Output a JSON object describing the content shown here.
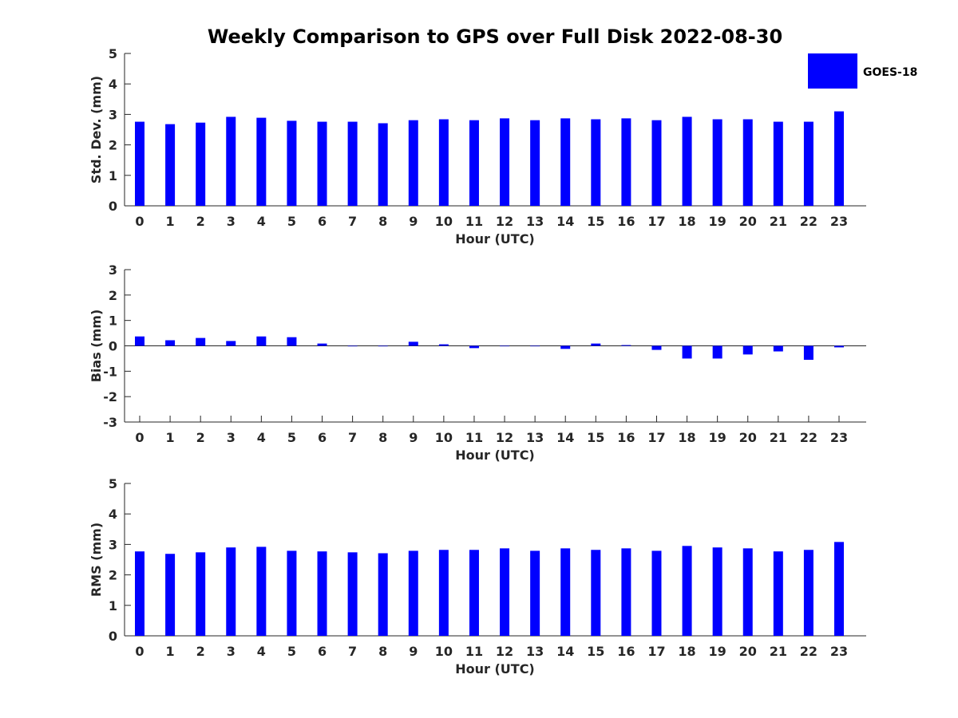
{
  "chart_data": [
    {
      "type": "bar",
      "panel": "std-dev",
      "title": "Weekly Comparison to GPS over Full Disk 2022-08-30",
      "xlabel": "Hour (UTC)",
      "ylabel": "Std. Dev. (mm)",
      "ylim": [
        0,
        5
      ],
      "yticks": [
        "0",
        "1",
        "2",
        "3",
        "4",
        "5"
      ],
      "categories": [
        "0",
        "1",
        "2",
        "3",
        "4",
        "5",
        "6",
        "7",
        "8",
        "9",
        "10",
        "11",
        "12",
        "13",
        "14",
        "15",
        "16",
        "17",
        "18",
        "19",
        "20",
        "21",
        "22",
        "23"
      ],
      "series": [
        {
          "name": "GOES-18",
          "color": "#0000ff",
          "values": [
            2.76,
            2.68,
            2.73,
            2.92,
            2.89,
            2.79,
            2.76,
            2.76,
            2.71,
            2.81,
            2.84,
            2.81,
            2.87,
            2.81,
            2.87,
            2.84,
            2.87,
            2.81,
            2.92,
            2.84,
            2.84,
            2.76,
            2.76,
            3.1
          ]
        }
      ],
      "legend": {
        "position": "top-right",
        "entries": [
          "GOES-18"
        ]
      }
    },
    {
      "type": "bar",
      "panel": "bias",
      "xlabel": "Hour (UTC)",
      "ylabel": "Bias (mm)",
      "ylim": [
        -3,
        3
      ],
      "yticks": [
        "-3",
        "-2",
        "-1",
        "0",
        "1",
        "2",
        "3"
      ],
      "categories": [
        "0",
        "1",
        "2",
        "3",
        "4",
        "5",
        "6",
        "7",
        "8",
        "9",
        "10",
        "11",
        "12",
        "13",
        "14",
        "15",
        "16",
        "17",
        "18",
        "19",
        "20",
        "21",
        "22",
        "23"
      ],
      "series": [
        {
          "name": "GOES-18",
          "color": "#0000ff",
          "values": [
            0.37,
            0.22,
            0.31,
            0.19,
            0.37,
            0.34,
            0.09,
            -0.02,
            -0.02,
            0.16,
            0.06,
            -0.09,
            0.0,
            0.0,
            -0.12,
            0.09,
            0.03,
            -0.16,
            -0.5,
            -0.5,
            -0.34,
            -0.22,
            -0.55,
            -0.06
          ]
        }
      ]
    },
    {
      "type": "bar",
      "panel": "rms",
      "xlabel": "Hour (UTC)",
      "ylabel": "RMS (mm)",
      "ylim": [
        0,
        5
      ],
      "yticks": [
        "0",
        "1",
        "2",
        "3",
        "4",
        "5"
      ],
      "categories": [
        "0",
        "1",
        "2",
        "3",
        "4",
        "5",
        "6",
        "7",
        "8",
        "9",
        "10",
        "11",
        "12",
        "13",
        "14",
        "15",
        "16",
        "17",
        "18",
        "19",
        "20",
        "21",
        "22",
        "23"
      ],
      "series": [
        {
          "name": "GOES-18",
          "color": "#0000ff",
          "values": [
            2.77,
            2.69,
            2.74,
            2.9,
            2.92,
            2.79,
            2.77,
            2.74,
            2.71,
            2.79,
            2.82,
            2.82,
            2.87,
            2.79,
            2.87,
            2.82,
            2.87,
            2.79,
            2.95,
            2.9,
            2.87,
            2.77,
            2.82,
            3.08
          ]
        }
      ]
    }
  ]
}
